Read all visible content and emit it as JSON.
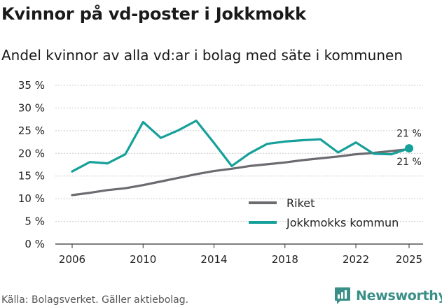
{
  "header": {
    "title": "Kvinnor på vd-poster i Jokkmokk",
    "subtitle": "Andel kvinnor av alla vd:ar i bolag med säte i kommunen"
  },
  "footer": {
    "source": "Källa: Bolagsverket. Gäller aktiebolag.",
    "brand": "Newsworthy"
  },
  "colors": {
    "riket": "#6b6b70",
    "kommun": "#16a09a",
    "grid": "#cccccc",
    "axis": "#333333"
  },
  "chart_data": {
    "type": "line",
    "title": "Kvinnor på vd-poster i Jokkmokk",
    "subtitle": "Andel kvinnor av alla vd:ar i bolag med säte i kommunen",
    "xlabel": "",
    "ylabel": "",
    "xlim": [
      2006,
      2025
    ],
    "ylim": [
      0,
      35
    ],
    "x_ticks": [
      2006,
      2010,
      2014,
      2018,
      2022,
      2025
    ],
    "y_ticks": [
      0,
      5,
      10,
      15,
      20,
      25,
      30,
      35
    ],
    "y_tick_suffix": " %",
    "grid": "horizontal",
    "legend_position": "bottom-right",
    "x": [
      2006,
      2007,
      2008,
      2009,
      2010,
      2011,
      2012,
      2013,
      2014,
      2015,
      2016,
      2017,
      2018,
      2019,
      2020,
      2021,
      2022,
      2023,
      2024,
      2025
    ],
    "series": [
      {
        "name": "Riket",
        "color": "#6b6b70",
        "values": [
          10.8,
          11.3,
          11.9,
          12.3,
          13.0,
          13.8,
          14.6,
          15.4,
          16.1,
          16.6,
          17.2,
          17.6,
          18.0,
          18.5,
          18.9,
          19.3,
          19.8,
          20.1,
          20.5,
          20.9
        ],
        "end_label": "21 %",
        "end_label_position": "above"
      },
      {
        "name": "Jokkmokks kommun",
        "color": "#16a09a",
        "values": [
          16.0,
          18.1,
          17.8,
          19.8,
          26.9,
          23.4,
          25.1,
          27.2,
          22.3,
          17.2,
          20.0,
          22.1,
          22.6,
          22.9,
          23.1,
          20.2,
          22.4,
          19.9,
          19.8,
          21.1
        ],
        "end_label": "21 %",
        "end_label_position": "below"
      }
    ]
  }
}
